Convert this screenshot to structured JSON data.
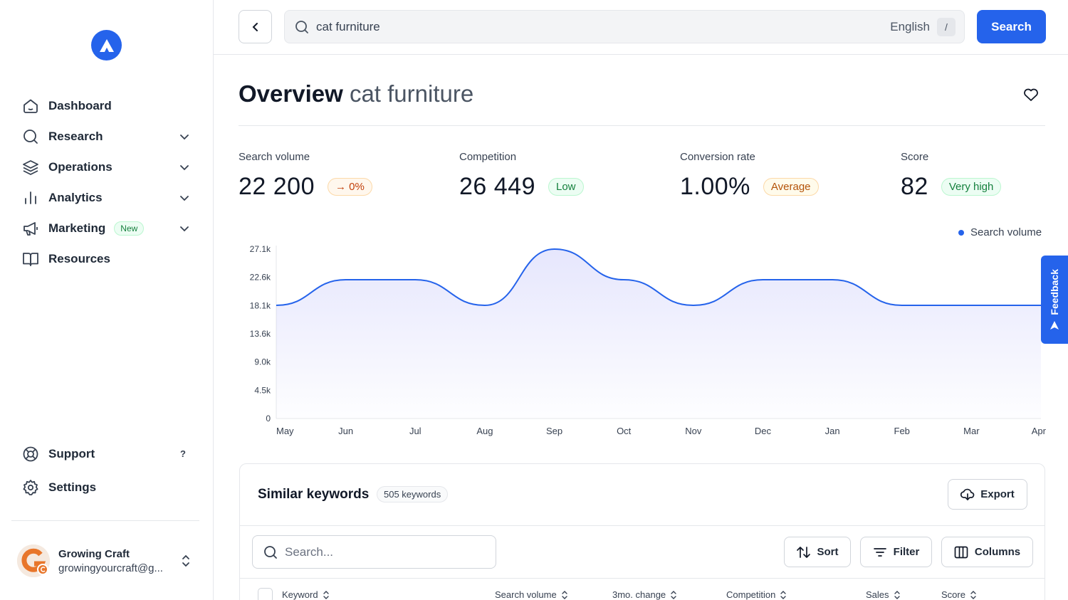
{
  "sidebar": {
    "nav": [
      {
        "label": "Dashboard",
        "icon": "home-icon",
        "has_chevron": false
      },
      {
        "label": "Research",
        "icon": "search-icon",
        "has_chevron": true
      },
      {
        "label": "Operations",
        "icon": "layers-icon",
        "has_chevron": true
      },
      {
        "label": "Analytics",
        "icon": "bar-chart-icon",
        "has_chevron": true
      },
      {
        "label": "Marketing",
        "icon": "megaphone-icon",
        "has_chevron": true,
        "badge": "New"
      },
      {
        "label": "Resources",
        "icon": "book-icon",
        "has_chevron": false
      }
    ],
    "bottom_nav": [
      {
        "label": "Support",
        "icon": "lifebuoy-icon",
        "hint": "?"
      },
      {
        "label": "Settings",
        "icon": "gear-icon"
      }
    ],
    "user": {
      "name": "Growing Craft",
      "email": "growingyourcraft@g..."
    }
  },
  "topbar": {
    "search_value": "cat furniture",
    "language": "English",
    "shortcut": "/",
    "search_button": "Search"
  },
  "overview": {
    "title_bold": "Overview",
    "title_keyword": "cat furniture",
    "stats": [
      {
        "label": "Search volume",
        "value": "22 200",
        "tag": "0%",
        "tag_prefix": "→",
        "tag_style": "neutral"
      },
      {
        "label": "Competition",
        "value": "26 449",
        "tag": "Low",
        "tag_style": "low"
      },
      {
        "label": "Conversion rate",
        "value": "1.00%",
        "tag": "Average",
        "tag_style": "avg"
      },
      {
        "label": "Score",
        "value": "82",
        "tag": "Very high",
        "tag_style": "vhigh"
      }
    ]
  },
  "chart_data": {
    "type": "area",
    "x": [
      "May",
      "Jun",
      "Jul",
      "Aug",
      "Sep",
      "Oct",
      "Nov",
      "Dec",
      "Jan",
      "Feb",
      "Mar",
      "Apr"
    ],
    "series": [
      {
        "name": "Search volume",
        "values": [
          18100,
          22200,
          22200,
          18100,
          27100,
          22200,
          18100,
          22200,
          22200,
          18100,
          18100,
          18100
        ]
      }
    ],
    "yticks": [
      "0",
      "4.5k",
      "9.0k",
      "13.6k",
      "18.1k",
      "22.6k",
      "27.1k"
    ],
    "ylim": [
      0,
      27100
    ],
    "legend": "top-right",
    "color": "#2563eb"
  },
  "feedback": {
    "label": "Feedback"
  },
  "keywords": {
    "title": "Similar keywords",
    "count": "505 keywords",
    "export": "Export",
    "search_placeholder": "Search...",
    "sort": "Sort",
    "filter": "Filter",
    "columns": "Columns",
    "headers": [
      "Keyword",
      "Search volume",
      "3mo. change",
      "Competition",
      "Sales",
      "Score"
    ]
  }
}
